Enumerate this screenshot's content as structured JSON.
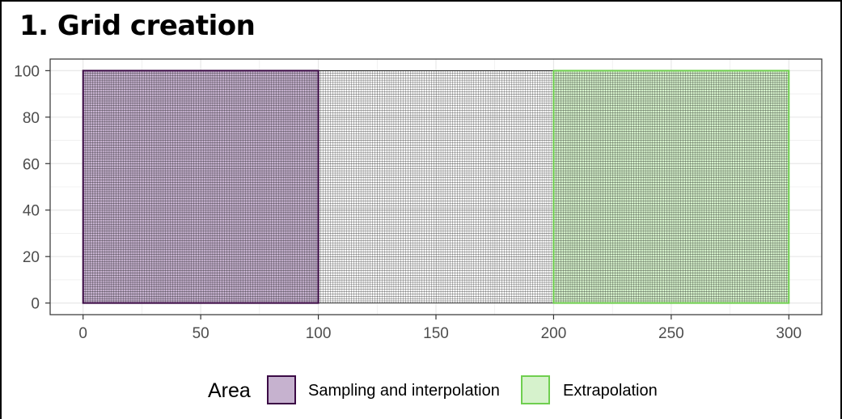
{
  "title": "1. Grid creation",
  "chart_data": {
    "type": "heatmap",
    "title": "1. Grid creation",
    "xlabel": "",
    "ylabel": "",
    "xlim": [
      -14,
      314
    ],
    "ylim": [
      -5,
      105
    ],
    "x_ticks": [
      0,
      50,
      100,
      150,
      200,
      250,
      300
    ],
    "y_ticks": [
      0,
      20,
      40,
      60,
      80,
      100
    ],
    "grid": true,
    "grid_cell_size": 1,
    "grid_extent": {
      "x": [
        0,
        300
      ],
      "y": [
        0,
        100
      ]
    },
    "areas": [
      {
        "name": "Sampling and interpolation",
        "x": [
          0,
          100
        ],
        "y": [
          0,
          100
        ],
        "fill": "#c6b2cf",
        "stroke": "#3b0a45"
      },
      {
        "name": "Extrapolation",
        "x": [
          200,
          300
        ],
        "y": [
          0,
          100
        ],
        "fill": "#d6f2cc",
        "stroke": "#6fcf4f"
      }
    ],
    "legend": {
      "title": "Area",
      "position": "bottom",
      "entries": [
        "Sampling and interpolation",
        "Extrapolation"
      ]
    }
  }
}
